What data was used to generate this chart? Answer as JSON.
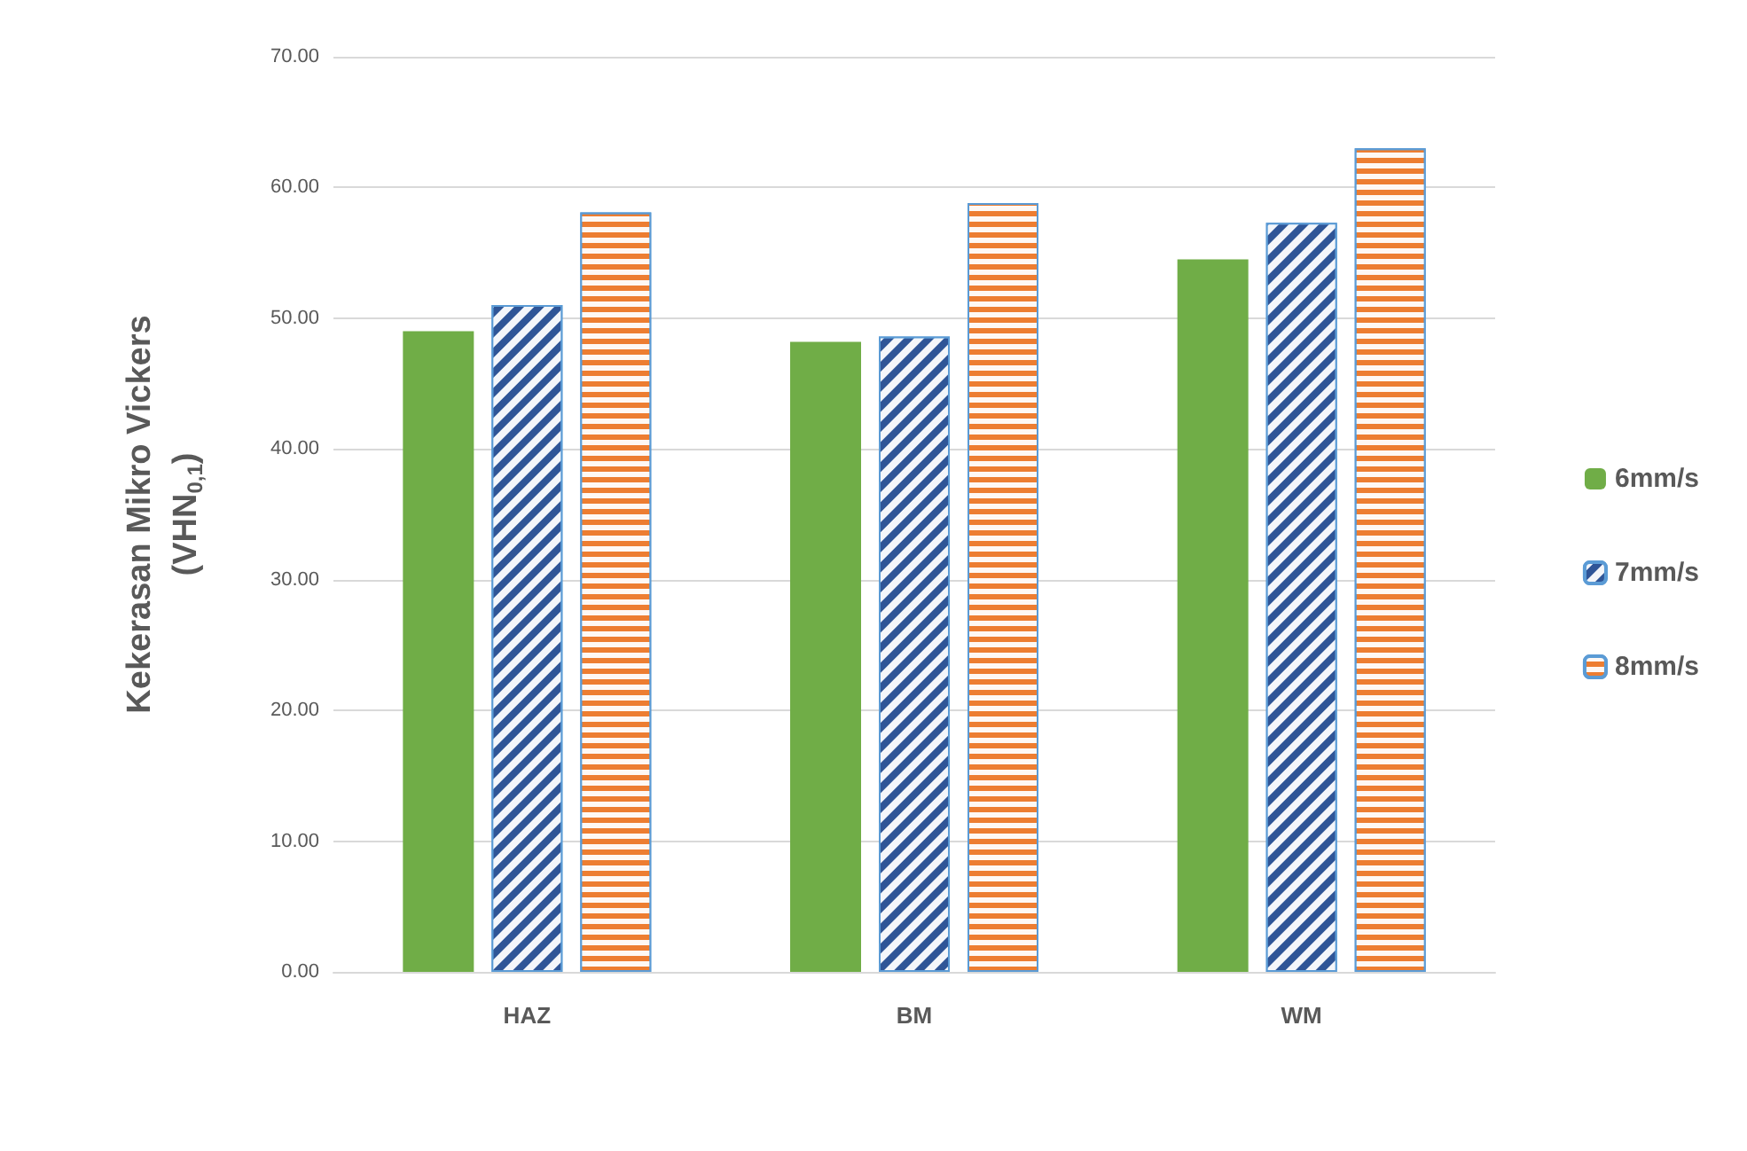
{
  "chart_data": {
    "type": "bar",
    "ylabel": "Kekerasan Mikro Vickers\n(VHN$_{0,1}$)",
    "categories": [
      "HAZ",
      "BM",
      "WM"
    ],
    "series": [
      {
        "name": "6mm/s",
        "color": "#70ad47",
        "values": [
          49.0,
          48.2,
          54.5
        ]
      },
      {
        "name": "7mm/s",
        "color": "#2f5597",
        "values": [
          51.0,
          48.6,
          57.3
        ]
      },
      {
        "name": "8mm/s",
        "color": "#ed7d31",
        "values": [
          58.1,
          58.8,
          63.0
        ]
      }
    ],
    "ylim": [
      0,
      70
    ],
    "yticks": [
      {
        "value": 0,
        "label": "0.00"
      },
      {
        "value": 10,
        "label": "10.00"
      },
      {
        "value": 20,
        "label": "20.00"
      },
      {
        "value": 30,
        "label": "30.00"
      },
      {
        "value": 40,
        "label": "40.00"
      },
      {
        "value": 50,
        "label": "50.00"
      },
      {
        "value": 60,
        "label": "60.00"
      },
      {
        "value": 70,
        "label": "70.00"
      }
    ],
    "grid": "y",
    "legend": "right"
  }
}
